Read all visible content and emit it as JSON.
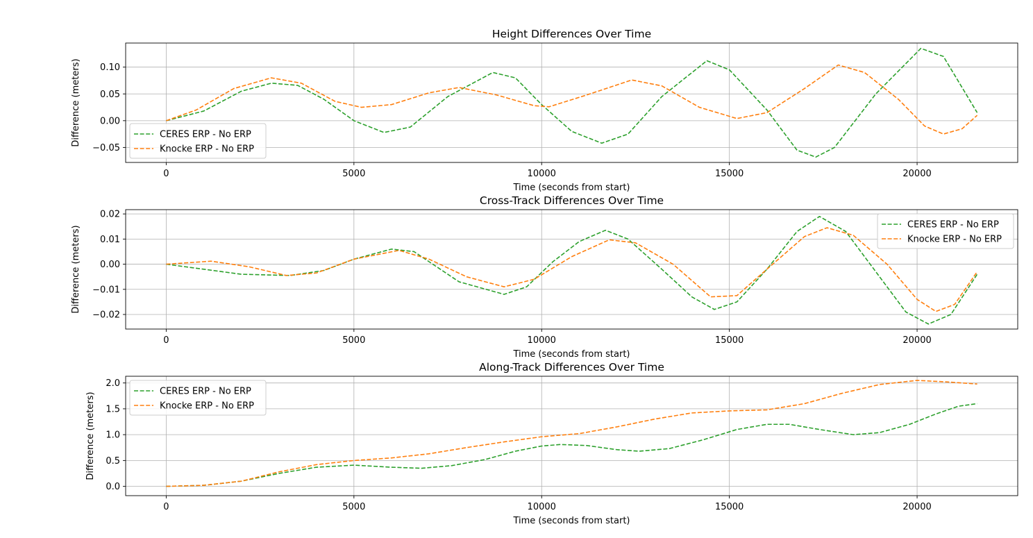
{
  "chart_data": [
    {
      "type": "line",
      "title": "Height Differences Over Time",
      "xlabel": "Time (seconds from start)",
      "ylabel": "Difference (meters)",
      "xlim": [
        -1080,
        22680
      ],
      "ylim": [
        -0.078,
        0.145
      ],
      "xticks": [
        0,
        5000,
        10000,
        15000,
        20000
      ],
      "xtick_labels": [
        "0",
        "5000",
        "10000",
        "15000",
        "20000"
      ],
      "yticks": [
        -0.05,
        0.0,
        0.05,
        0.1
      ],
      "ytick_labels": [
        "−0.05",
        "0.00",
        "0.05",
        "0.10"
      ],
      "grid": true,
      "legend_position": "lower-left",
      "series": [
        {
          "name": "CERES ERP - No ERP",
          "color": "#2ca02c",
          "linestyle": "dashed",
          "points": [
            [
              0,
              0.0
            ],
            [
              1000,
              0.018
            ],
            [
              2000,
              0.055
            ],
            [
              2800,
              0.07
            ],
            [
              3500,
              0.066
            ],
            [
              4200,
              0.04
            ],
            [
              5000,
              0.0
            ],
            [
              5800,
              -0.022
            ],
            [
              6500,
              -0.012
            ],
            [
              7500,
              0.045
            ],
            [
              8700,
              0.09
            ],
            [
              9300,
              0.08
            ],
            [
              10000,
              0.03
            ],
            [
              10800,
              -0.02
            ],
            [
              11600,
              -0.042
            ],
            [
              12300,
              -0.025
            ],
            [
              13200,
              0.045
            ],
            [
              14400,
              0.112
            ],
            [
              15000,
              0.095
            ],
            [
              16000,
              0.02
            ],
            [
              16800,
              -0.055
            ],
            [
              17300,
              -0.068
            ],
            [
              17800,
              -0.05
            ],
            [
              18900,
              0.05
            ],
            [
              20100,
              0.135
            ],
            [
              20700,
              0.12
            ],
            [
              21600,
              0.015
            ]
          ]
        },
        {
          "name": "Knocke ERP - No ERP",
          "color": "#ff7f0e",
          "linestyle": "dashed",
          "points": [
            [
              0,
              0.0
            ],
            [
              800,
              0.02
            ],
            [
              1800,
              0.06
            ],
            [
              2800,
              0.08
            ],
            [
              3600,
              0.07
            ],
            [
              4500,
              0.036
            ],
            [
              5200,
              0.025
            ],
            [
              6000,
              0.03
            ],
            [
              7000,
              0.052
            ],
            [
              7800,
              0.062
            ],
            [
              8800,
              0.048
            ],
            [
              9800,
              0.028
            ],
            [
              10200,
              0.026
            ],
            [
              11200,
              0.048
            ],
            [
              12400,
              0.076
            ],
            [
              13200,
              0.065
            ],
            [
              14200,
              0.025
            ],
            [
              15200,
              0.004
            ],
            [
              16000,
              0.015
            ],
            [
              17000,
              0.06
            ],
            [
              17900,
              0.104
            ],
            [
              18600,
              0.09
            ],
            [
              19500,
              0.04
            ],
            [
              20200,
              -0.01
            ],
            [
              20700,
              -0.025
            ],
            [
              21200,
              -0.015
            ],
            [
              21600,
              0.01
            ]
          ]
        }
      ]
    },
    {
      "type": "line",
      "title": "Cross-Track Differences Over Time",
      "xlabel": "Time (seconds from start)",
      "ylabel": "Difference (meters)",
      "xlim": [
        -1080,
        22680
      ],
      "ylim": [
        -0.0258,
        0.0217
      ],
      "xticks": [
        0,
        5000,
        10000,
        15000,
        20000
      ],
      "xtick_labels": [
        "0",
        "5000",
        "10000",
        "15000",
        "20000"
      ],
      "yticks": [
        -0.02,
        -0.01,
        0.0,
        0.01,
        0.02
      ],
      "ytick_labels": [
        "−0.02",
        "−0.01",
        "0.00",
        "0.01",
        "0.02"
      ],
      "grid": true,
      "legend_position": "upper-right",
      "series": [
        {
          "name": "CERES ERP - No ERP",
          "color": "#2ca02c",
          "linestyle": "dashed",
          "points": [
            [
              0,
              0.0
            ],
            [
              1000,
              -0.002
            ],
            [
              2000,
              -0.004
            ],
            [
              3300,
              -0.0045
            ],
            [
              4200,
              -0.0025
            ],
            [
              5000,
              0.002
            ],
            [
              6000,
              0.006
            ],
            [
              6600,
              0.005
            ],
            [
              7800,
              -0.007
            ],
            [
              9000,
              -0.012
            ],
            [
              9600,
              -0.009
            ],
            [
              10300,
              0.001
            ],
            [
              11000,
              0.009
            ],
            [
              11700,
              0.0135
            ],
            [
              12300,
              0.01
            ],
            [
              13200,
              -0.002
            ],
            [
              14000,
              -0.013
            ],
            [
              14600,
              -0.018
            ],
            [
              15200,
              -0.015
            ],
            [
              16000,
              -0.002
            ],
            [
              16800,
              0.013
            ],
            [
              17400,
              0.019
            ],
            [
              18100,
              0.013
            ],
            [
              19000,
              -0.005
            ],
            [
              19700,
              -0.019
            ],
            [
              20300,
              -0.0238
            ],
            [
              20900,
              -0.02
            ],
            [
              21600,
              -0.004
            ]
          ]
        },
        {
          "name": "Knocke ERP - No ERP",
          "color": "#ff7f0e",
          "linestyle": "dashed",
          "points": [
            [
              0,
              0.0
            ],
            [
              1200,
              0.0012
            ],
            [
              2200,
              -0.001
            ],
            [
              3200,
              -0.0045
            ],
            [
              4000,
              -0.0035
            ],
            [
              5000,
              0.002
            ],
            [
              6200,
              0.0055
            ],
            [
              7000,
              0.002
            ],
            [
              8000,
              -0.005
            ],
            [
              9000,
              -0.009
            ],
            [
              9800,
              -0.006
            ],
            [
              10800,
              0.003
            ],
            [
              11800,
              0.0097
            ],
            [
              12500,
              0.0085
            ],
            [
              13500,
              0.0
            ],
            [
              14500,
              -0.013
            ],
            [
              15200,
              -0.0125
            ],
            [
              16000,
              -0.002
            ],
            [
              17000,
              0.011
            ],
            [
              17600,
              0.0145
            ],
            [
              18300,
              0.0115
            ],
            [
              19200,
              0.0
            ],
            [
              20000,
              -0.014
            ],
            [
              20500,
              -0.0188
            ],
            [
              21000,
              -0.016
            ],
            [
              21600,
              -0.003
            ]
          ]
        }
      ]
    },
    {
      "type": "line",
      "title": "Along-Track Differences Over Time",
      "xlabel": "Time (seconds from start)",
      "ylabel": "Difference (meters)",
      "xlim": [
        -1080,
        22680
      ],
      "ylim": [
        -0.18,
        2.13
      ],
      "xticks": [
        0,
        5000,
        10000,
        15000,
        20000
      ],
      "xtick_labels": [
        "0",
        "5000",
        "10000",
        "15000",
        "20000"
      ],
      "yticks": [
        0.0,
        0.5,
        1.0,
        1.5,
        2.0
      ],
      "ytick_labels": [
        "0.0",
        "0.5",
        "1.0",
        "1.5",
        "2.0"
      ],
      "grid": true,
      "legend_position": "upper-left",
      "series": [
        {
          "name": "CERES ERP - No ERP",
          "color": "#2ca02c",
          "linestyle": "dashed",
          "points": [
            [
              0,
              0.0
            ],
            [
              1000,
              0.02
            ],
            [
              2000,
              0.1
            ],
            [
              3000,
              0.25
            ],
            [
              4000,
              0.37
            ],
            [
              5000,
              0.41
            ],
            [
              6000,
              0.37
            ],
            [
              6800,
              0.35
            ],
            [
              7600,
              0.4
            ],
            [
              8500,
              0.52
            ],
            [
              9300,
              0.68
            ],
            [
              10000,
              0.78
            ],
            [
              10500,
              0.81
            ],
            [
              11200,
              0.79
            ],
            [
              12000,
              0.71
            ],
            [
              12600,
              0.68
            ],
            [
              13400,
              0.73
            ],
            [
              14300,
              0.9
            ],
            [
              15200,
              1.1
            ],
            [
              16000,
              1.2
            ],
            [
              16600,
              1.2
            ],
            [
              17400,
              1.1
            ],
            [
              18300,
              1.0
            ],
            [
              19000,
              1.04
            ],
            [
              19800,
              1.2
            ],
            [
              20500,
              1.4
            ],
            [
              21100,
              1.55
            ],
            [
              21600,
              1.6
            ]
          ]
        },
        {
          "name": "Knocke ERP - No ERP",
          "color": "#ff7f0e",
          "linestyle": "dashed",
          "points": [
            [
              0,
              0.0
            ],
            [
              1000,
              0.02
            ],
            [
              2000,
              0.1
            ],
            [
              3000,
              0.28
            ],
            [
              4000,
              0.42
            ],
            [
              5000,
              0.5
            ],
            [
              6000,
              0.55
            ],
            [
              7000,
              0.63
            ],
            [
              8000,
              0.75
            ],
            [
              9000,
              0.86
            ],
            [
              10000,
              0.96
            ],
            [
              11000,
              1.02
            ],
            [
              12000,
              1.15
            ],
            [
              13000,
              1.3
            ],
            [
              14000,
              1.42
            ],
            [
              15000,
              1.46
            ],
            [
              16000,
              1.48
            ],
            [
              17000,
              1.6
            ],
            [
              18000,
              1.8
            ],
            [
              19000,
              1.97
            ],
            [
              20000,
              2.05
            ],
            [
              20800,
              2.02
            ],
            [
              21600,
              1.98
            ]
          ]
        }
      ]
    }
  ]
}
